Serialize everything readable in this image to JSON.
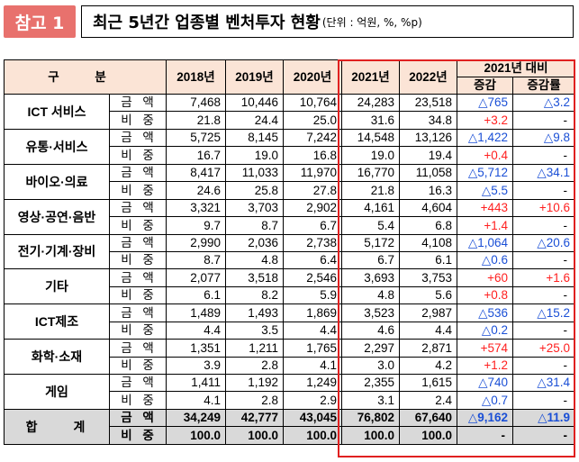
{
  "header": {
    "tag": "참고 1",
    "title": "최근 5년간 업종별 벤처투자 현황",
    "unit": "(단위 : 억원, %, %p)"
  },
  "table": {
    "col_header": "구 분",
    "years": [
      "2018년",
      "2019년",
      "2020년",
      "2021년",
      "2022년"
    ],
    "compare_header": "2021년 대비",
    "compare_cols": [
      "증감",
      "증감률"
    ],
    "amount_label": "금 액",
    "share_label": "비 중",
    "categories": [
      {
        "name": "ICT 서비스",
        "amount": [
          "7,468",
          "10,446",
          "10,764",
          "24,283",
          "23,518"
        ],
        "amount_change": "△765",
        "amount_rate": "△3.2",
        "share": [
          "21.8",
          "24.4",
          "25.0",
          "31.6",
          "34.8"
        ],
        "share_change": "+3.2",
        "share_rate": "-"
      },
      {
        "name": "유통·서비스",
        "amount": [
          "5,725",
          "8,145",
          "7,242",
          "14,548",
          "13,126"
        ],
        "amount_change": "△1,422",
        "amount_rate": "△9.8",
        "share": [
          "16.7",
          "19.0",
          "16.8",
          "19.0",
          "19.4"
        ],
        "share_change": "+0.4",
        "share_rate": "-"
      },
      {
        "name": "바이오·의료",
        "amount": [
          "8,417",
          "11,033",
          "11,970",
          "16,770",
          "11,058"
        ],
        "amount_change": "△5,712",
        "amount_rate": "△34.1",
        "share": [
          "24.6",
          "25.8",
          "27.8",
          "21.8",
          "16.3"
        ],
        "share_change": "△5.5",
        "share_rate": "-"
      },
      {
        "name": "영상·공연·음반",
        "amount": [
          "3,321",
          "3,703",
          "2,902",
          "4,161",
          "4,604"
        ],
        "amount_change": "+443",
        "amount_rate": "+10.6",
        "share": [
          "9.7",
          "8.7",
          "6.7",
          "5.4",
          "6.8"
        ],
        "share_change": "+1.4",
        "share_rate": "-"
      },
      {
        "name": "전기·기계·장비",
        "amount": [
          "2,990",
          "2,036",
          "2,738",
          "5,172",
          "4,108"
        ],
        "amount_change": "△1,064",
        "amount_rate": "△20.6",
        "share": [
          "8.7",
          "4.8",
          "6.4",
          "6.7",
          "6.1"
        ],
        "share_change": "△0.6",
        "share_rate": "-"
      },
      {
        "name": "기타",
        "amount": [
          "2,077",
          "3,518",
          "2,546",
          "3,693",
          "3,753"
        ],
        "amount_change": "+60",
        "amount_rate": "+1.6",
        "share": [
          "6.1",
          "8.2",
          "5.9",
          "4.8",
          "5.6"
        ],
        "share_change": "+0.8",
        "share_rate": "-"
      },
      {
        "name": "ICT제조",
        "amount": [
          "1,489",
          "1,493",
          "1,869",
          "3,523",
          "2,987"
        ],
        "amount_change": "△536",
        "amount_rate": "△15.2",
        "share": [
          "4.4",
          "3.5",
          "4.4",
          "4.6",
          "4.4"
        ],
        "share_change": "△0.2",
        "share_rate": "-"
      },
      {
        "name": "화학·소재",
        "amount": [
          "1,351",
          "1,211",
          "1,765",
          "2,297",
          "2,871"
        ],
        "amount_change": "+574",
        "amount_rate": "+25.0",
        "share": [
          "3.9",
          "2.8",
          "4.1",
          "3.0",
          "4.2"
        ],
        "share_change": "+1.2",
        "share_rate": "-"
      },
      {
        "name": "게임",
        "amount": [
          "1,411",
          "1,192",
          "1,249",
          "2,355",
          "1,615"
        ],
        "amount_change": "△740",
        "amount_rate": "△31.4",
        "share": [
          "4.1",
          "2.8",
          "2.9",
          "3.1",
          "2.4"
        ],
        "share_change": "△0.7",
        "share_rate": "-"
      }
    ],
    "total": {
      "name": "합 계",
      "amount": [
        "34,249",
        "42,777",
        "43,045",
        "76,802",
        "67,640"
      ],
      "amount_change": "△9,162",
      "amount_rate": "△11.9",
      "share": [
        "100.0",
        "100.0",
        "100.0",
        "100.0",
        "100.0"
      ],
      "share_change": "-",
      "share_rate": "-"
    }
  },
  "colors": {
    "tag_bg": "#e8716d",
    "header_bg": "#fbe4d6",
    "total_bg": "#d9d9d9",
    "decrease": "#1a4fd6",
    "increase": "#ff2020",
    "highlight_border": "#e02020"
  }
}
